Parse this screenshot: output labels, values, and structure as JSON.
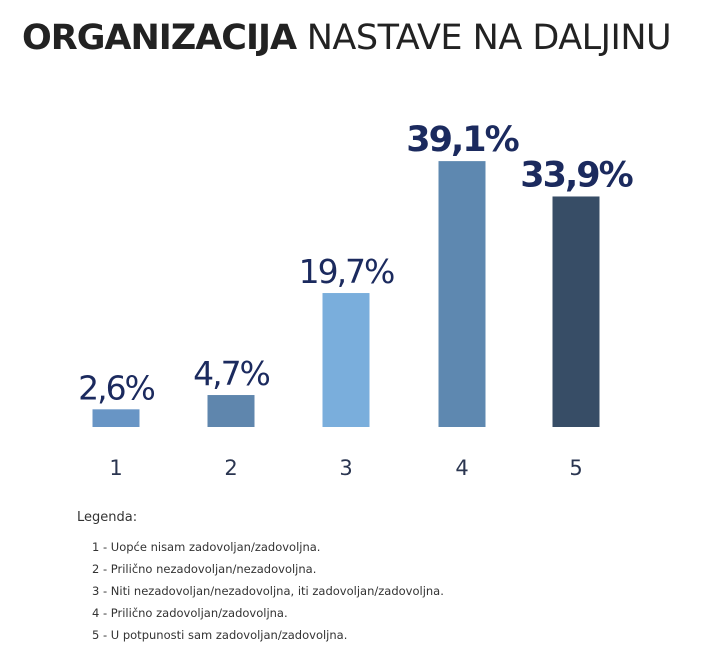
{
  "title_bold": "ORGANIZACIJA",
  "title_light": " NASTAVE NA DALJINU",
  "chart_data": {
    "type": "bar",
    "categories": [
      "1",
      "2",
      "3",
      "4",
      "5"
    ],
    "values": [
      2.6,
      4.7,
      19.7,
      39.1,
      33.9
    ],
    "value_labels": [
      "2,6%",
      "4,7%",
      "19,7%",
      "39,1%",
      "33,9%"
    ],
    "value_label_color": "#1b2a5e",
    "bar_colors": [
      "#6895c5",
      "#5f86ad",
      "#7aaedc",
      "#5e88b0",
      "#374d66"
    ],
    "label_bold": [
      false,
      false,
      false,
      true,
      true
    ],
    "grid": false
  },
  "legend": {
    "title": "Legenda:",
    "items": [
      "1 - Uopće nisam zadovoljan/zadovoljna.",
      "2 - Prilično nezadovoljan/nezadovoljna.",
      "3 - Niti nezadovoljan/nezadovoljna, iti zadovoljan/zadovoljna.",
      "4 - Prilično zadovoljan/zadovoljna.",
      "5 - U potpunosti sam zadovoljan/zadovoljna."
    ]
  }
}
